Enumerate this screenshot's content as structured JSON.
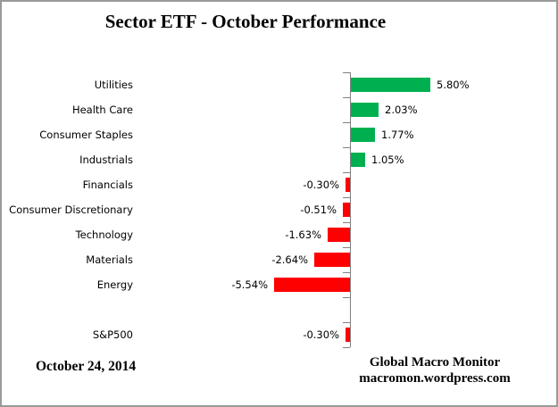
{
  "chart_data": {
    "type": "bar",
    "orientation": "horizontal",
    "title": "Sector ETF - October Performance",
    "rows": [
      {
        "category": "Utilities",
        "value": 5.8,
        "label": "5.80%"
      },
      {
        "category": "Health Care",
        "value": 2.03,
        "label": "2.03%"
      },
      {
        "category": "Consumer Staples",
        "value": 1.77,
        "label": "1.77%"
      },
      {
        "category": "Industrials",
        "value": 1.05,
        "label": "1.05%"
      },
      {
        "category": "Financials",
        "value": -0.3,
        "label": "-0.30%"
      },
      {
        "category": "Consumer Discretionary",
        "value": -0.51,
        "label": "-0.51%"
      },
      {
        "category": "Technology",
        "value": -1.63,
        "label": "-1.63%"
      },
      {
        "category": "Materials",
        "value": -2.64,
        "label": "-2.64%"
      },
      {
        "category": "Energy",
        "value": -5.54,
        "label": "-5.54%"
      },
      {
        "category": "",
        "value": null,
        "label": ""
      },
      {
        "category": "S&P500",
        "value": -0.3,
        "label": "-0.30%"
      }
    ],
    "colors": {
      "positive": "#00B050",
      "negative": "#FF0000",
      "axis": "#808080"
    },
    "legend": "none",
    "grid": "off",
    "value_labels_position": "outside-end"
  },
  "footer": {
    "date": "October 24, 2014",
    "credit_line1": "Global Macro Monitor",
    "credit_line2": "macromon.wordpress.com"
  }
}
